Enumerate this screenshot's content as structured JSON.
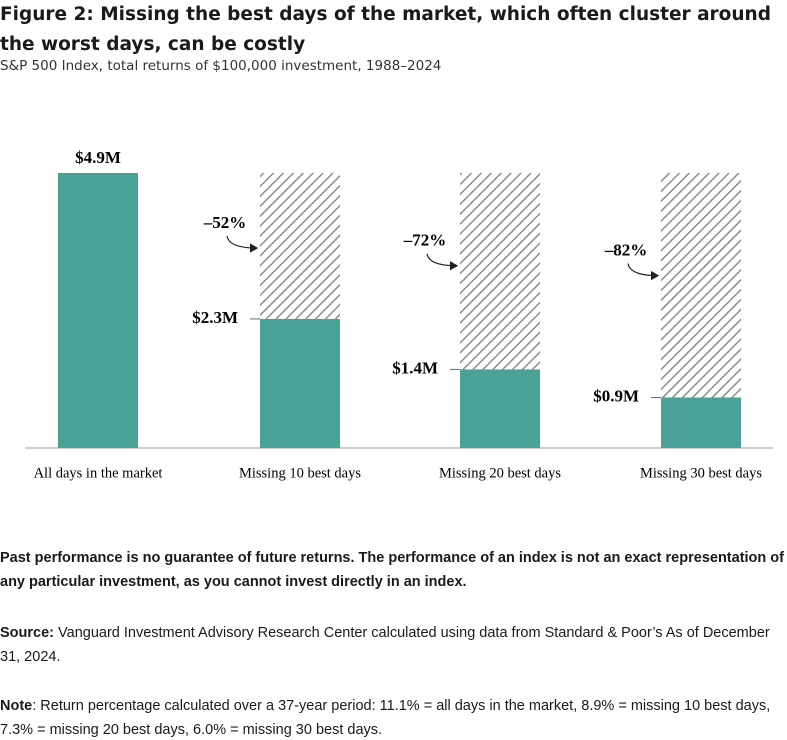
{
  "chart_data": {
    "type": "bar",
    "title": "Figure 2: Missing the best days of the market, which often cluster around the worst days, can be costly",
    "subtitle": "S&P 500 Index, total returns of $100,000 investment, 1988–2024",
    "categories": [
      "All days in the market",
      "Missing 10 best days",
      "Missing 20 best days",
      "Missing 30 best days"
    ],
    "values": [
      4.9,
      2.3,
      1.4,
      0.9
    ],
    "value_labels": [
      "$4.9M",
      "$2.3M",
      "$1.4M",
      "$0.9M"
    ],
    "changes": [
      null,
      -52,
      -72,
      -82
    ],
    "change_labels": [
      null,
      "–52%",
      "–72%",
      "–82%"
    ],
    "color": "#4aa296"
  },
  "notes": {
    "disclaimer": "Past performance is no guarantee of future returns. The performance of an index is not an exact representation of any particular investment, as you cannot invest directly in an index.",
    "source_label": "Source:",
    "source": "Vanguard Investment Advisory Research Center calculated using data from Standard & Poor’s As of December 31, 2024.",
    "note_label": "Note",
    "note": ": Return percentage calculated over a 37-year period: 11.1% = all days in the market, 8.9% = missing 10 best days, 7.3% = missing 20 best days, 6.0% = missing 30 best days."
  }
}
